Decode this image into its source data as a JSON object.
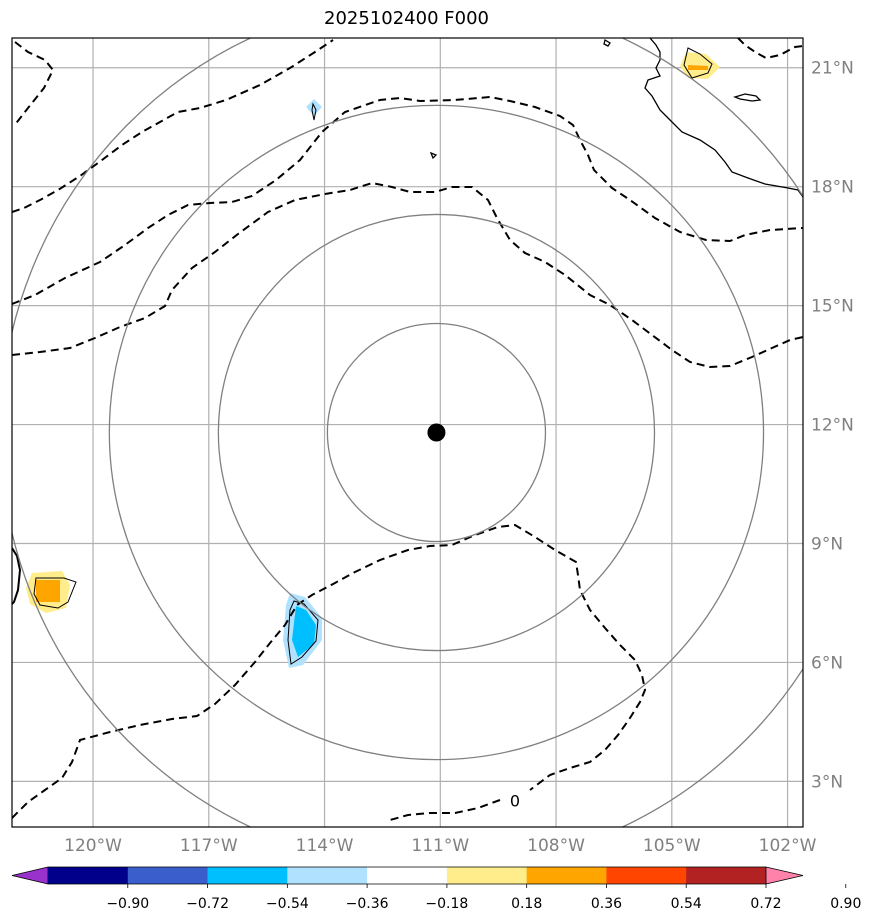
{
  "title": "2025102400 F000",
  "map": {
    "lon_range": [
      -122.1,
      -101.6
    ],
    "lat_range": [
      1.85,
      21.75
    ],
    "center": {
      "lon": -111.1,
      "lat": 11.8
    },
    "range_ring_radii_deg": [
      2.75,
      5.5,
      8.25,
      11
    ],
    "gridline_color": "#b0b0b0",
    "ring_color": "#808080",
    "lon_ticks": [
      {
        "value": -120,
        "label": "120°W"
      },
      {
        "value": -117,
        "label": "117°W"
      },
      {
        "value": -114,
        "label": "114°W"
      },
      {
        "value": -111,
        "label": "111°W"
      },
      {
        "value": -108,
        "label": "108°W"
      },
      {
        "value": -105,
        "label": "105°W"
      },
      {
        "value": -102,
        "label": "102°W"
      }
    ],
    "lat_ticks": [
      {
        "value": 21,
        "label": "21°N"
      },
      {
        "value": 18,
        "label": "18°N"
      },
      {
        "value": 15,
        "label": "15°N"
      },
      {
        "value": 12,
        "label": "12°N"
      },
      {
        "value": 9,
        "label": "9°N"
      },
      {
        "value": 6,
        "label": "6°N"
      },
      {
        "value": 3,
        "label": "3°N"
      }
    ],
    "contour_label": "0"
  },
  "colorbar": {
    "colors": [
      "#9932cc",
      "#00008b",
      "#3a5fcd",
      "#00bfff",
      "#b0e2ff",
      "#ffffff",
      "#ffec8b",
      "#ffa500",
      "#ff4500",
      "#b22222",
      "#ff82ab"
    ],
    "tick_labels": [
      "−0.90",
      "−0.72",
      "−0.54",
      "−0.36",
      "−0.18",
      "0.18",
      "0.36",
      "0.54",
      "0.72",
      "0.90"
    ]
  }
}
